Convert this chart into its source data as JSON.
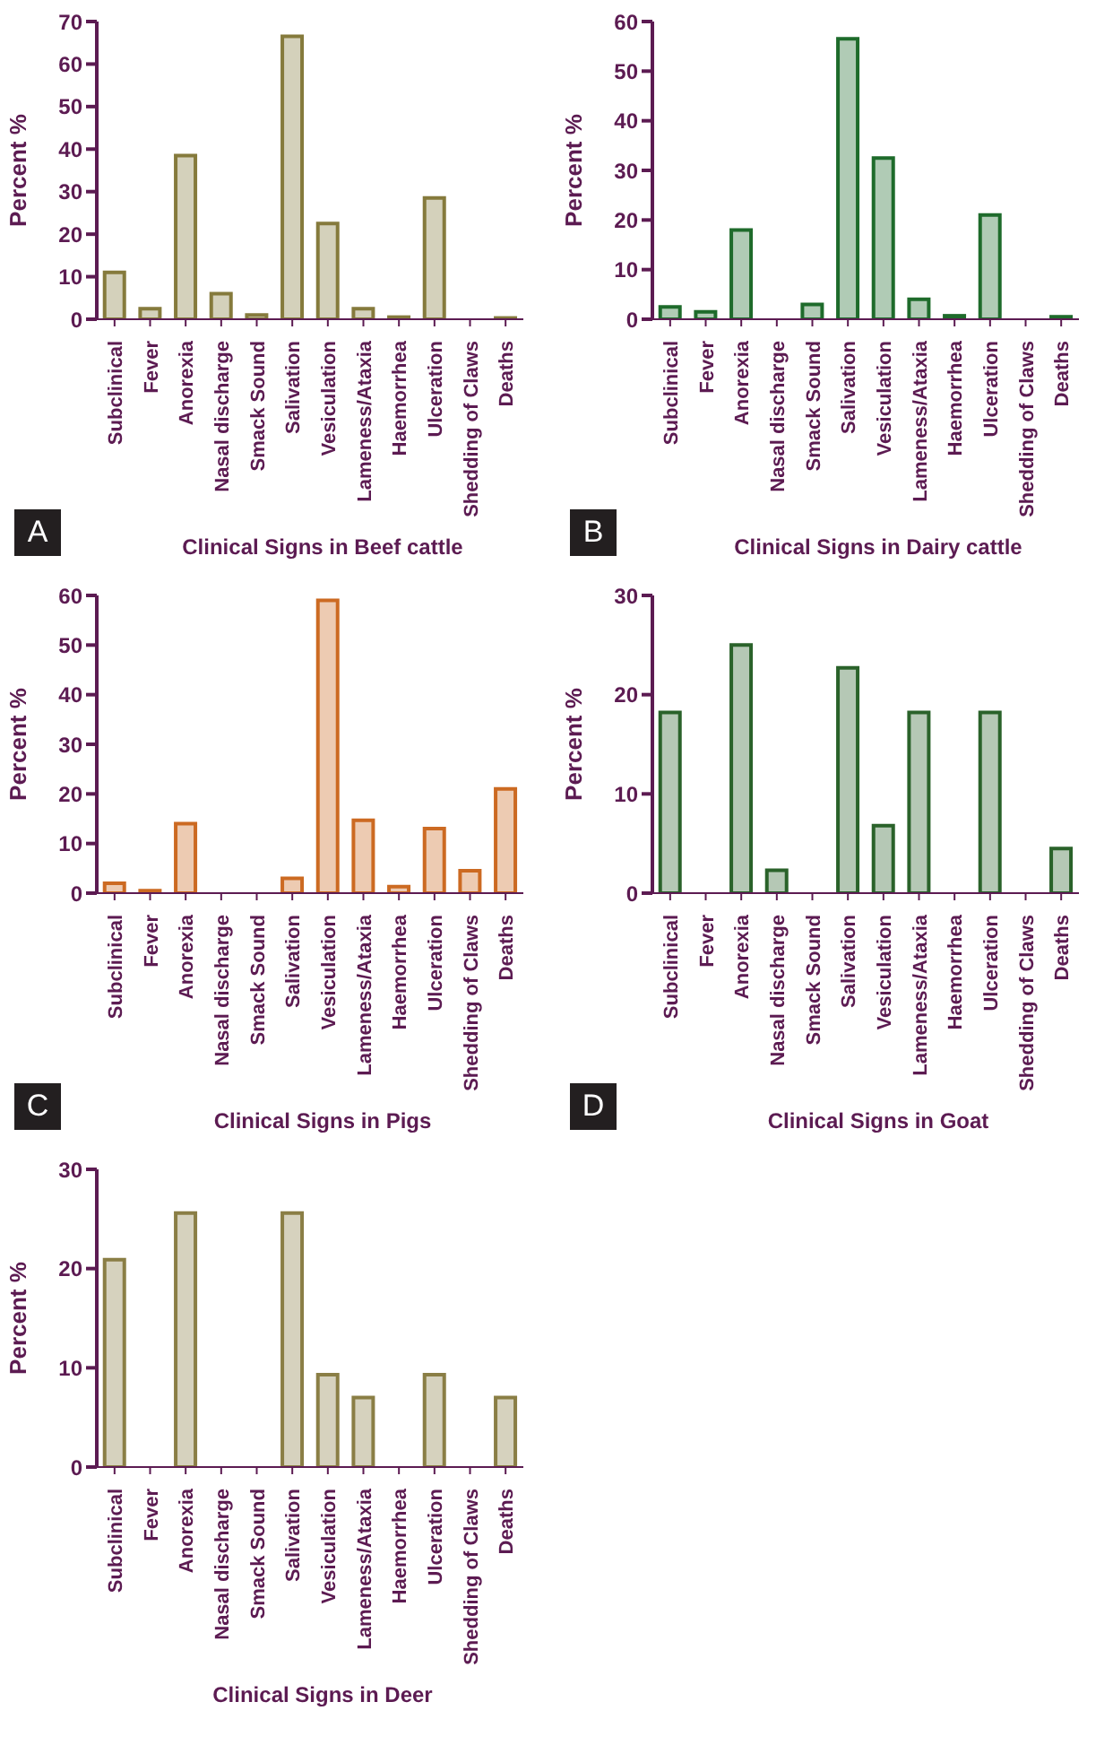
{
  "chart_data": [
    {
      "type": "bar",
      "xlabel": "Clinical Signs in Beef cattle",
      "ylabel": "Percent %",
      "annotations": [
        "A"
      ],
      "categories": [
        "Subclinical",
        "Fever",
        "Anorexia",
        "Nasal discharge",
        "Smack Sound",
        "Salivation",
        "Vesiculation",
        "Lameness/Ataxia",
        "Haemorrhea",
        "Ulceration",
        "Shedding of Claws",
        "Deaths"
      ],
      "series": [
        {
          "color": "#857a3c",
          "values": [
            11,
            2.5,
            38.5,
            6,
            1,
            66.5,
            22.5,
            2.5,
            0.5,
            28.5,
            0,
            0.3
          ]
        }
      ],
      "ylim": [
        0,
        70
      ],
      "yticks": [
        0,
        10,
        20,
        30,
        40,
        50,
        60,
        70
      ],
      "grid": false,
      "legend": false
    },
    {
      "type": "bar",
      "xlabel": "Clinical Signs in  Dairy cattle",
      "ylabel": "Percent %",
      "annotations": [
        "B"
      ],
      "categories": [
        "Subclinical",
        "Fever",
        "Anorexia",
        "Nasal discharge",
        "Smack Sound",
        "Salivation",
        "Vesiculation",
        "Lameness/Ataxia",
        "Haemorrhea",
        "Ulceration",
        "Shedding of Claws",
        "Deaths"
      ],
      "series": [
        {
          "color": "#1e6b2b",
          "values": [
            2.5,
            1.5,
            18,
            0,
            3,
            56.5,
            32.5,
            4,
            0.7,
            21,
            0,
            0.5
          ]
        }
      ],
      "ylim": [
        0,
        60
      ],
      "yticks": [
        0,
        10,
        20,
        30,
        40,
        50,
        60
      ],
      "grid": false,
      "legend": false
    },
    {
      "type": "bar",
      "xlabel": "Clinical Signs in  Pigs",
      "ylabel": "Percent %",
      "annotations": [
        "C"
      ],
      "categories": [
        "Subclinical",
        "Fever",
        "Anorexia",
        "Nasal discharge",
        "Smack Sound",
        "Salivation",
        "Vesiculation",
        "Lameness/Ataxia",
        "Haemorrhea",
        "Ulceration",
        "Shedding of Claws",
        "Deaths"
      ],
      "series": [
        {
          "color": "#cc6a22",
          "values": [
            2,
            0.5,
            14,
            0,
            0,
            3,
            59,
            14.7,
            1.3,
            13,
            4.5,
            21
          ]
        }
      ],
      "ylim": [
        0,
        60
      ],
      "yticks": [
        0,
        10,
        20,
        30,
        40,
        50,
        60
      ],
      "grid": false,
      "legend": false
    },
    {
      "type": "bar",
      "xlabel": "Clinical Signs in Goat",
      "ylabel": "Percent %",
      "annotations": [
        "D"
      ],
      "categories": [
        "Subclinical",
        "Fever",
        "Anorexia",
        "Nasal discharge",
        "Smack Sound",
        "Salivation",
        "Vesiculation",
        "Lameness/Ataxia",
        "Haemorrhea",
        "Ulceration",
        "Shedding of Claws",
        "Deaths"
      ],
      "series": [
        {
          "color": "#2a622a",
          "values": [
            18.2,
            0,
            25,
            2.3,
            0,
            22.7,
            6.8,
            18.2,
            0,
            18.2,
            0,
            4.5
          ]
        }
      ],
      "ylim": [
        0,
        30
      ],
      "yticks": [
        0,
        10,
        20,
        30
      ],
      "grid": false,
      "legend": false
    },
    {
      "type": "bar",
      "xlabel": "Clinical Signs in Deer",
      "ylabel": "Percent %",
      "categories": [
        "Subclinical",
        "Fever",
        "Anorexia",
        "Nasal discharge",
        "Smack Sound",
        "Salivation",
        "Vesiculation",
        "Lameness/Ataxia",
        "Haemorrhea",
        "Ulceration",
        "Shedding of Claws",
        "Deaths"
      ],
      "series": [
        {
          "color": "#8a7e45",
          "values": [
            20.9,
            0,
            25.6,
            0,
            0,
            25.6,
            9.3,
            7,
            0,
            9.3,
            0,
            7
          ]
        }
      ],
      "ylim": [
        0,
        30
      ],
      "yticks": [
        0,
        10,
        20,
        30
      ],
      "grid": false,
      "legend": false
    }
  ]
}
